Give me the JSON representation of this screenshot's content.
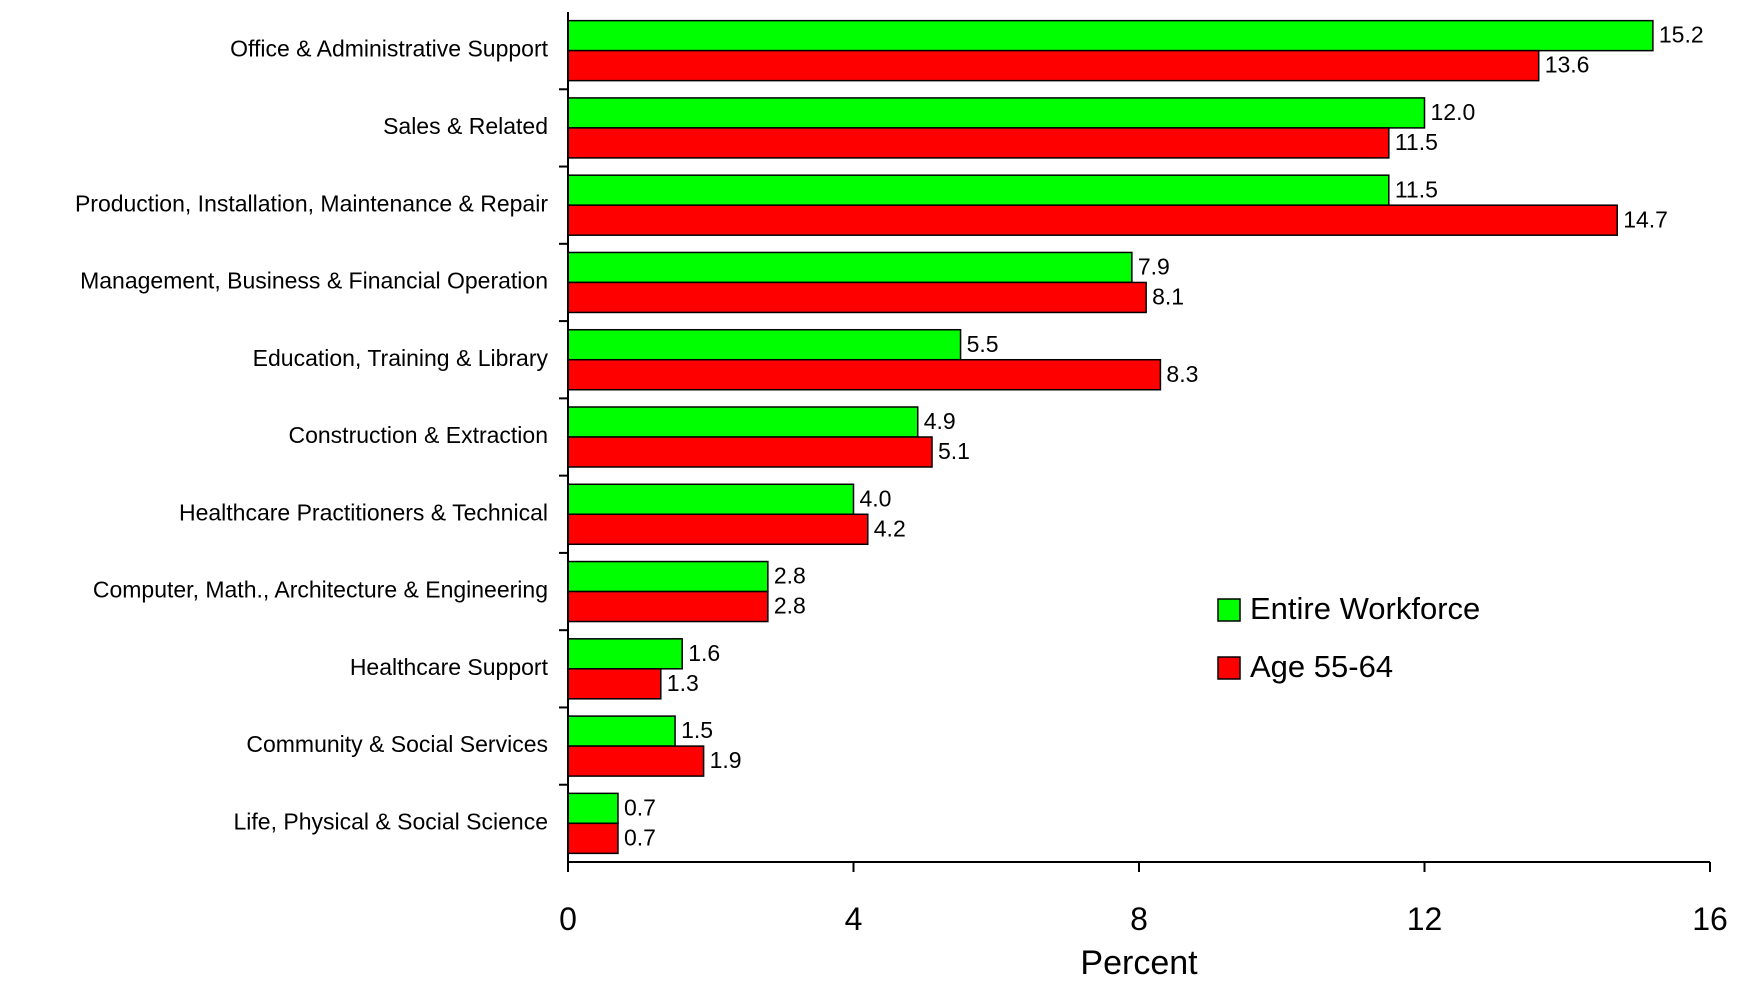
{
  "chart_data": {
    "type": "bar",
    "orientation": "horizontal",
    "categories": [
      "Office & Administrative Support",
      "Sales & Related",
      "Production, Installation, Maintenance & Repair",
      "Management, Business & Financial Operation",
      "Education, Training & Library",
      "Construction & Extraction",
      "Healthcare Practitioners & Technical",
      "Computer, Math., Architecture & Engineering",
      "Healthcare Support",
      "Community & Social Services",
      "Life, Physical & Social Science"
    ],
    "series": [
      {
        "name": "Entire Workforce",
        "color": "#00ff00",
        "values": [
          15.2,
          12.0,
          11.5,
          7.9,
          5.5,
          4.9,
          4.0,
          2.8,
          1.6,
          1.5,
          0.7
        ],
        "labels": [
          "15.2",
          "12.0",
          "11.5",
          "7.9",
          "5.5",
          "4.9",
          "4.0",
          "2.8",
          "1.6",
          "1.5",
          "0.7"
        ]
      },
      {
        "name": "Age 55-64",
        "color": "#ff0000",
        "values": [
          13.6,
          11.5,
          14.7,
          8.1,
          8.3,
          5.1,
          4.2,
          2.8,
          1.3,
          1.9,
          0.7
        ],
        "labels": [
          "13.6",
          "11.5",
          "14.7",
          "8.1",
          "8.3",
          "5.1",
          "4.2",
          "2.8",
          "1.3",
          "1.9",
          "0.7"
        ]
      }
    ],
    "xlabel": "Percent",
    "xlim": [
      0,
      16
    ],
    "xticks": [
      0,
      4,
      8,
      12,
      16
    ],
    "xtick_labels": [
      "0",
      "4",
      "8",
      "12",
      "16"
    ],
    "grid": false,
    "legend_position": "center-right"
  }
}
